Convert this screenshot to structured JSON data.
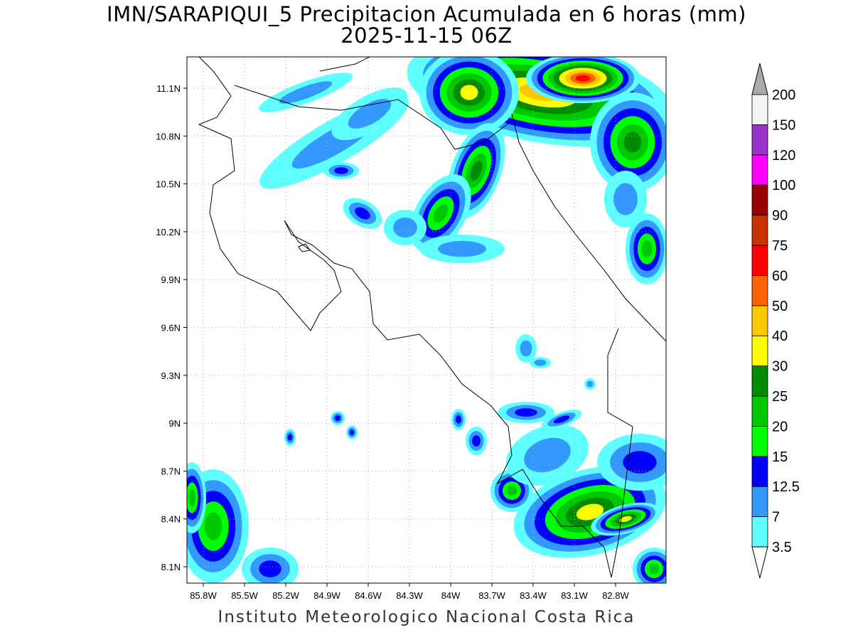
{
  "title": {
    "line1": "IMN/SARAPIQUI_5 Precipitacion Acumulada en 6 horas (mm)",
    "line2": "2025-11-15 06Z"
  },
  "map": {
    "lon_ticks": [
      "85.8W",
      "85.5W",
      "85.2W",
      "84.9W",
      "84.6W",
      "84.3W",
      "84W",
      "83.7W",
      "83.4W",
      "83.1W",
      "82.8W"
    ],
    "lat_ticks": [
      "11.1N",
      "10.8N",
      "10.5N",
      "10.2N",
      "9.9N",
      "9.6N",
      "9.3N",
      "9N",
      "8.7N",
      "8.4N",
      "8.1N"
    ],
    "grid": true
  },
  "colorbar": {
    "labels": [
      "3.5",
      "7",
      "12.5",
      "15",
      "20",
      "25",
      "30",
      "40",
      "50",
      "60",
      "75",
      "90",
      "100",
      "120",
      "150",
      "200"
    ],
    "colors": [
      "#5fffff",
      "#3399ff",
      "#0000ff",
      "#00ff00",
      "#00c800",
      "#008c00",
      "#ffff00",
      "#ffc800",
      "#ff6400",
      "#ff0000",
      "#c83200",
      "#960000",
      "#ff00ff",
      "#9933cc",
      "#f5f5f5"
    ],
    "over_color": "#aaaaaa",
    "under_color": "#ffffff"
  },
  "footer": "Instituto Meteorologico Nacional Costa Rica"
}
